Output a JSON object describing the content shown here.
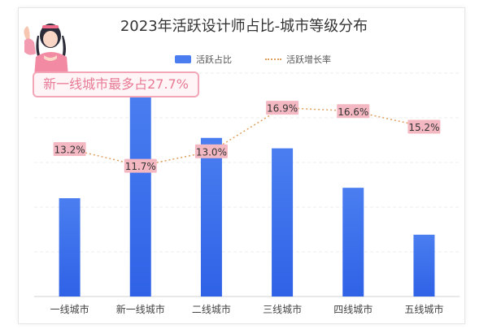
{
  "chart_data": {
    "type": "bar",
    "title": "2023年活跃设计师占比-城市等级分布",
    "categories": [
      "一线城市",
      "新一线城市",
      "二线城市",
      "三线城市",
      "四线城市",
      "五线城市"
    ],
    "series": [
      {
        "name": "活跃占比",
        "type": "bar",
        "values": [
          13.2,
          27.7,
          21.3,
          19.9,
          14.6,
          8.3
        ]
      },
      {
        "name": "活跃增长率",
        "type": "line",
        "values": [
          13.2,
          11.7,
          13.0,
          16.9,
          16.6,
          15.2
        ],
        "labels": [
          "13.2%",
          "11.7%",
          "13.0%",
          "16.9%",
          "16.6%",
          "15.2%"
        ]
      }
    ],
    "annotation": "新一线城市最多占27.7%",
    "grid": true,
    "legend": "top-center",
    "colors": {
      "bar": "#4a7ef0",
      "line": "#e0a060",
      "label_bg": "#f4b8c2"
    }
  }
}
